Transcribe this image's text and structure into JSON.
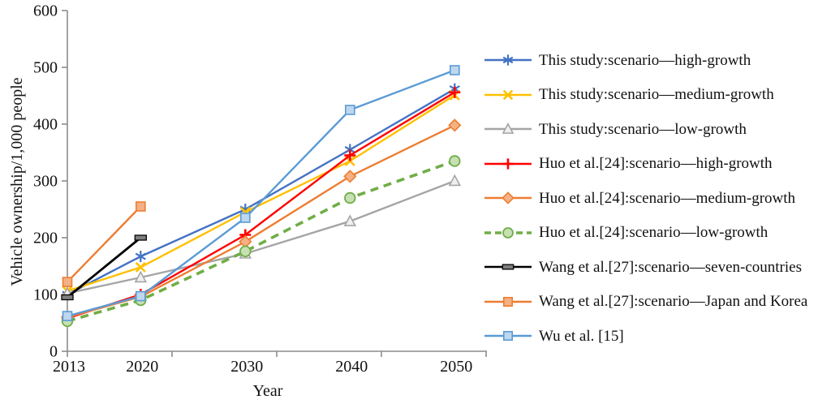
{
  "figure": {
    "background": "#ffffff",
    "axis_color": "#8c8c8c",
    "text_color": "#111111"
  },
  "chart_data": {
    "type": "line",
    "title": "",
    "xlabel": "Year",
    "ylabel": "Vehicle ownership/1,000 people",
    "grid": false,
    "legend_position": "right",
    "xlim": [
      2013,
      2053
    ],
    "ylim": [
      0,
      600
    ],
    "y_ticks": [
      0,
      100,
      200,
      300,
      400,
      500,
      600
    ],
    "x_tick_years": [
      2013,
      2023,
      2033,
      2043,
      2053
    ],
    "x_label_years": [
      2013,
      2020,
      2030,
      2040,
      2050
    ],
    "x": [
      2013,
      2020,
      2030,
      2040,
      2050
    ],
    "series": [
      {
        "name": "This study:scenario—high-growth",
        "color": "#4472C4",
        "marker": "asterisk",
        "marker_fill": "#4472C4",
        "dash": "solid",
        "values": [
          100,
          167,
          250,
          355,
          462
        ]
      },
      {
        "name": "This study:scenario—medium-growth",
        "color": "#FFC000",
        "marker": "x",
        "marker_fill": "#FFC000",
        "dash": "solid",
        "values": [
          106,
          148,
          245,
          335,
          451
        ]
      },
      {
        "name": "This study:scenario—low-growth",
        "color": "#A5A5A5",
        "marker": "triangle",
        "marker_fill": "#efefef",
        "dash": "solid",
        "values": [
          102,
          130,
          172,
          229,
          300
        ]
      },
      {
        "name": "Huo et al.[24]:scenario—high-growth",
        "color": "#FF0000",
        "marker": "plus",
        "marker_fill": "#FF0000",
        "dash": "solid",
        "values": [
          58,
          100,
          205,
          345,
          456
        ]
      },
      {
        "name": "Huo et al.[24]:scenario—medium-growth",
        "color": "#ED7D31",
        "marker": "diamond",
        "marker_fill": "#F4B183",
        "dash": "solid",
        "values": [
          60,
          96,
          193,
          308,
          398
        ]
      },
      {
        "name": "Huo et al.[24]:scenario—low-growth",
        "color": "#70AD47",
        "marker": "circle",
        "marker_fill": "#C6E0B4",
        "dash": "dashed",
        "values": [
          53,
          90,
          176,
          270,
          335
        ]
      },
      {
        "name": "Wang et al.[27]:scenario—seven-countries",
        "color": "#000000",
        "marker": "dash",
        "marker_fill": "#7F7F7F",
        "dash": "solid",
        "values": [
          95,
          200,
          null,
          null,
          null
        ]
      },
      {
        "name": "Wang et al.[27]:scenario—Japan and Korea",
        "color": "#ED7D31",
        "marker": "square",
        "marker_fill": "#F4B183",
        "dash": "solid",
        "values": [
          122,
          255,
          null,
          null,
          null
        ]
      },
      {
        "name": "Wu et al. [15]",
        "color": "#5B9BD5",
        "marker": "square",
        "marker_fill": "#BDD7EE",
        "dash": "solid",
        "values": [
          62,
          97,
          235,
          425,
          495
        ]
      }
    ]
  }
}
